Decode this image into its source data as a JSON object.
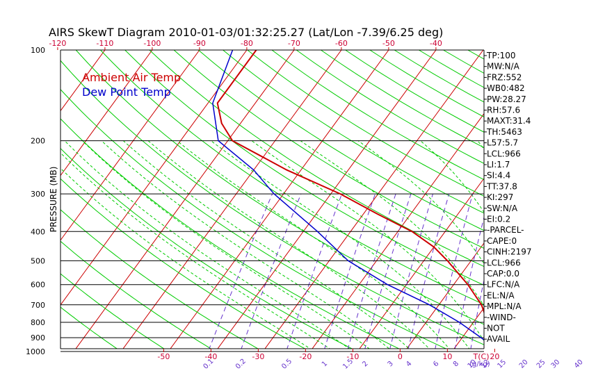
{
  "chart_data": {
    "type": "line",
    "title": "AIRS SkewT Diagram 2010-01-03/01:32:25.27 (Lat/Lon -7.39/6.25 deg)",
    "ylabel": "PRESSURE (MB)",
    "xlabel": "T(C)",
    "mixing_ratio_unit": "(g/kg)",
    "pressure_levels": [
      100,
      200,
      300,
      400,
      500,
      600,
      700,
      800,
      900,
      1000
    ],
    "ylim": [
      1050,
      100
    ],
    "y_scale": "log",
    "bottom_temp_ticks": [
      -50,
      -40,
      -30,
      -20,
      -10,
      0,
      10,
      20
    ],
    "top_temp_ticks": [
      -120,
      -110,
      -100,
      -90,
      -80,
      -70,
      -60,
      -50,
      -40
    ],
    "mixing_ratio_labels": [
      "0.1",
      "0.2",
      "0.5",
      "1",
      "1.5",
      "2",
      "3",
      "4",
      "6",
      "8",
      "10",
      "12",
      "15",
      "20",
      "25",
      "30",
      "40"
    ],
    "legend": [
      "Ambient Air Temp",
      "Dew Point Temp"
    ],
    "colors": {
      "temperature": "#cc0000",
      "dewpoint": "#0000cc",
      "isotherm": "#cc0000",
      "dry_adiabat": "#00cc00",
      "moist_adiabat": "#00cc00",
      "mixing_ratio": "#6633cc",
      "isobar": "#000000",
      "tick_label": "#cc0033"
    },
    "series": [
      {
        "name": "Ambient Air Temp",
        "points": [
          {
            "p": 100,
            "t": -78
          },
          {
            "p": 150,
            "t": -78
          },
          {
            "p": 175,
            "t": -74
          },
          {
            "p": 200,
            "t": -69
          },
          {
            "p": 250,
            "t": -53
          },
          {
            "p": 300,
            "t": -38
          },
          {
            "p": 350,
            "t": -27
          },
          {
            "p": 400,
            "t": -17
          },
          {
            "p": 450,
            "t": -10
          },
          {
            "p": 500,
            "t": -5
          },
          {
            "p": 600,
            "t": 3
          },
          {
            "p": 700,
            "t": 9
          },
          {
            "p": 800,
            "t": 13
          },
          {
            "p": 900,
            "t": 18
          },
          {
            "p": 1000,
            "t": 23
          },
          {
            "p": 1050,
            "t": 25
          }
        ]
      },
      {
        "name": "Dew Point Temp",
        "points": [
          {
            "p": 100,
            "t": -83
          },
          {
            "p": 150,
            "t": -79
          },
          {
            "p": 200,
            "t": -72
          },
          {
            "p": 250,
            "t": -60
          },
          {
            "p": 300,
            "t": -52
          },
          {
            "p": 400,
            "t": -37
          },
          {
            "p": 500,
            "t": -26
          },
          {
            "p": 600,
            "t": -14
          },
          {
            "p": 700,
            "t": -2
          },
          {
            "p": 800,
            "t": 7
          },
          {
            "p": 900,
            "t": 14
          },
          {
            "p": 1000,
            "t": 20
          },
          {
            "p": 1050,
            "t": 22
          }
        ]
      }
    ],
    "side_panel": [
      "TP:100",
      "MW:N/A",
      "FRZ:552",
      "WB0:482",
      "PW:28.27",
      "RH:57.6",
      "MAXT:31.4",
      "TH:5463",
      "L57:5.7",
      "LCL:966",
      "LI:1.7",
      "SI:4.4",
      "TT:37.8",
      "KI:297",
      "SW:N/A",
      "EI:0.2",
      "-PARCEL-",
      "CAPE:0",
      "CINH:2197",
      "LCL:966",
      "CAP:0.0",
      "LFC:N/A",
      "EL:N/A",
      "MPL:N/A",
      "-WIND-",
      "NOT",
      "AVAIL"
    ]
  }
}
